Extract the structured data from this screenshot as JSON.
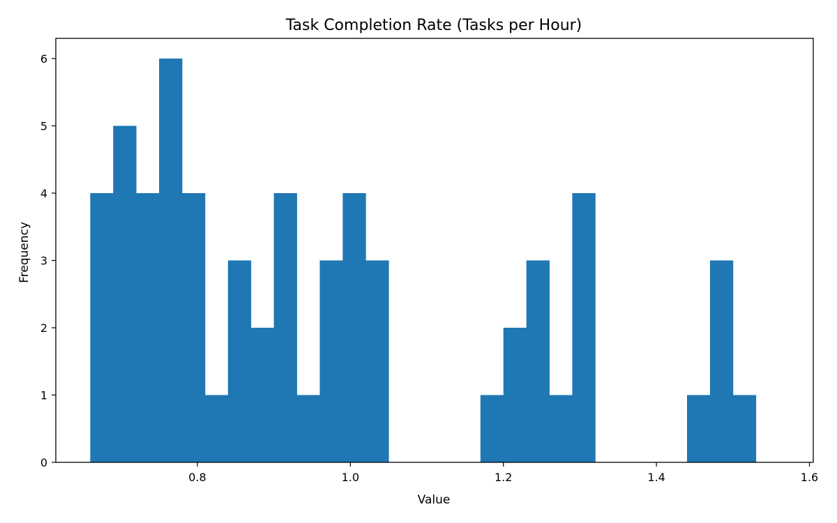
{
  "chart_data": {
    "type": "bar",
    "title": "Task Completion Rate (Tasks per Hour)",
    "xlabel": "Value",
    "ylabel": "Frequency",
    "bin_start": 0.66,
    "bin_width": 0.03,
    "counts": [
      4,
      5,
      4,
      6,
      4,
      1,
      3,
      2,
      4,
      1,
      3,
      4,
      3,
      0,
      0,
      0,
      0,
      1,
      2,
      3,
      1,
      4,
      0,
      0,
      0,
      0,
      1,
      3,
      1
    ],
    "xlim": [
      0.615,
      1.605
    ],
    "ylim": [
      0,
      6.3
    ],
    "x_ticks": [
      "0.8",
      "1.0",
      "1.2",
      "1.4",
      "1.6"
    ],
    "y_ticks": [
      "0",
      "1",
      "2",
      "3",
      "4",
      "5",
      "6"
    ],
    "bar_color": "#1f77b4",
    "grid": false,
    "legend": "none"
  }
}
